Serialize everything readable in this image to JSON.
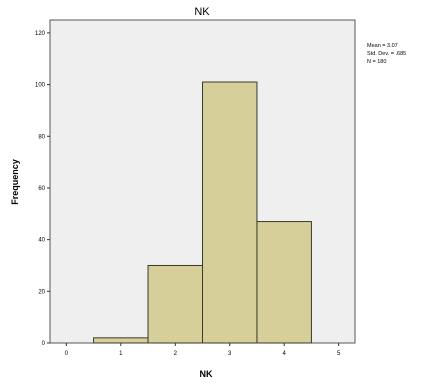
{
  "chart_data": {
    "type": "bar",
    "title": "NK",
    "xlabel": "NK",
    "ylabel": "Frequency",
    "bins": [
      {
        "start": 0.5,
        "end": 1.5,
        "value": 2
      },
      {
        "start": 1.5,
        "end": 2.5,
        "value": 30
      },
      {
        "start": 2.5,
        "end": 3.5,
        "value": 101
      },
      {
        "start": 3.5,
        "end": 4.5,
        "value": 47
      }
    ],
    "xlim": [
      -0.3,
      5.3
    ],
    "ylim": [
      0,
      125
    ],
    "x_ticks": [
      0,
      1,
      2,
      3,
      4,
      5
    ],
    "y_ticks": [
      0,
      20,
      40,
      60,
      80,
      100,
      120
    ],
    "stats": [
      "Mean = 3.07",
      "Std. Dev. = .685",
      "N = 180"
    ],
    "grid": false,
    "colors": {
      "bar_fill": "#d6cf9a",
      "bar_stroke": "#3a3a2a",
      "plot_bg": "#efefef",
      "axis": "#333333"
    }
  }
}
